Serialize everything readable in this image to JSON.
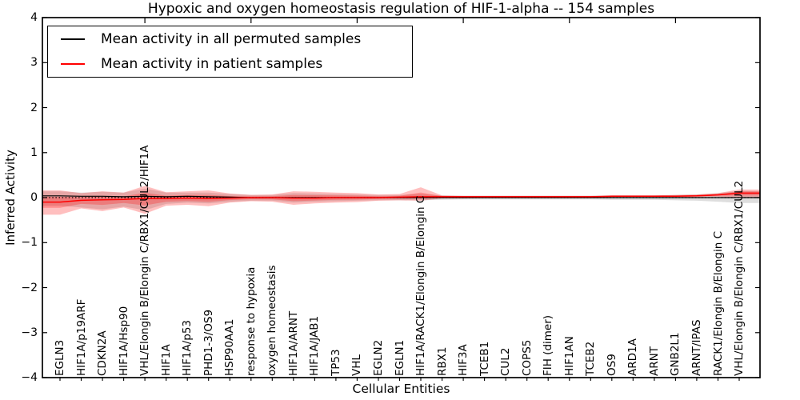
{
  "figure": {
    "title": "Hypoxic and oxygen homeostasis regulation of HIF-1-alpha -- 154 samples",
    "xlabel": "Cellular Entities",
    "ylabel": "Inferred Activity"
  },
  "legend": {
    "entries": [
      {
        "label": "Mean activity in all permuted samples",
        "color": "#000000"
      },
      {
        "label": "Mean activity in patient samples",
        "color": "#ff0000"
      }
    ]
  },
  "chart_data": {
    "type": "line",
    "title": "Hypoxic and oxygen homeostasis regulation of HIF-1-alpha -- 154 samples",
    "xlabel": "Cellular Entities",
    "ylabel": "Inferred Activity",
    "ylim": [
      -4,
      4
    ],
    "ytick_values": [
      -4,
      -3,
      -2,
      -1,
      0,
      1,
      2,
      3,
      4
    ],
    "ytick_labels": [
      "−4",
      "−3",
      "−2",
      "−1",
      "0",
      "1",
      "2",
      "3",
      "4"
    ],
    "grid": false,
    "zero_line_style": "dotted",
    "legend_position": "upper left",
    "top_tick_categories": [
      4,
      9,
      14,
      19,
      24,
      29
    ],
    "categories": [
      "EGLN3",
      "HIF1A/p19ARF",
      "CDKN2A",
      "HIF1A/Hsp90",
      "VHL/Elongin B/Elongin C/RBX1/CUL2/HIF1A",
      "HIF1A",
      "HIF1A/p53",
      "PHD1-3/OS9",
      "HSP90AA1",
      "response to hypoxia",
      "oxygen homeostasis",
      "HIF1A/ARNT",
      "HIF1A/JAB1",
      "TP53",
      "VHL",
      "EGLN2",
      "EGLN1",
      "HIF1A/RACK1/Elongin B/Elongin C",
      "RBX1",
      "HIF3A",
      "TCEB1",
      "CUL2",
      "COPS5",
      "FIH (dimer)",
      "HIF1AN",
      "TCEB2",
      "OS9",
      "ARD1A",
      "ARNT",
      "GNB2L1",
      "ARNT/IPAS",
      "RACK1/Elongin B/Elongin C",
      "VHL/Elongin B/Elongin C/RBX1/CUL2"
    ],
    "series": [
      {
        "name": "Mean activity in all permuted samples",
        "color": "#000000",
        "band_color": "rgba(0,0,0,0.13)",
        "values": [
          0.04,
          0.03,
          0.03,
          0.02,
          0.03,
          0.02,
          0.03,
          0.02,
          0.01,
          0,
          0,
          0,
          0,
          0,
          0,
          0,
          0,
          0,
          0,
          0,
          0,
          0,
          0,
          0,
          0,
          0,
          0,
          0,
          0,
          0,
          0,
          0,
          0
        ],
        "band_hi": [
          0.14,
          0.11,
          0.13,
          0.11,
          0.2,
          0.11,
          0.11,
          0.11,
          0.08,
          0.06,
          0.06,
          0.1,
          0.09,
          0.08,
          0.07,
          0.06,
          0.06,
          0.08,
          0.05,
          0.04,
          0.04,
          0.04,
          0.04,
          0.04,
          0.04,
          0.04,
          0.05,
          0.05,
          0.05,
          0.06,
          0.07,
          0.1,
          0.15
        ],
        "band_lo": [
          -0.18,
          -0.22,
          -0.26,
          -0.2,
          -0.28,
          -0.14,
          -0.11,
          -0.13,
          -0.09,
          -0.07,
          -0.07,
          -0.11,
          -0.09,
          -0.08,
          -0.07,
          -0.06,
          -0.06,
          -0.06,
          -0.05,
          -0.04,
          -0.04,
          -0.04,
          -0.04,
          -0.04,
          -0.04,
          -0.04,
          -0.05,
          -0.05,
          -0.05,
          -0.06,
          -0.07,
          -0.09,
          -0.12
        ]
      },
      {
        "name": "Mean activity in patient samples",
        "color": "#ff0000",
        "band_color": "rgba(255,0,0,0.25)",
        "values": [
          -0.1,
          -0.06,
          -0.05,
          -0.04,
          -0.02,
          -0.02,
          -0.01,
          -0.02,
          -0.01,
          0,
          0,
          -0.01,
          -0.01,
          0,
          0,
          0,
          0.01,
          0.02,
          0.02,
          0.02,
          0.02,
          0.02,
          0.02,
          0.02,
          0.02,
          0.02,
          0.03,
          0.03,
          0.03,
          0.03,
          0.04,
          0.06,
          0.1
        ],
        "band_hi": [
          0.16,
          0.1,
          0.14,
          0.11,
          0.26,
          0.12,
          0.14,
          0.16,
          0.09,
          0.06,
          0.07,
          0.14,
          0.13,
          0.11,
          0.1,
          0.07,
          0.08,
          0.23,
          0.05,
          0.04,
          0.04,
          0.04,
          0.04,
          0.04,
          0.04,
          0.04,
          0.05,
          0.05,
          0.05,
          0.06,
          0.07,
          0.1,
          0.18
        ],
        "band_lo": [
          -0.38,
          -0.24,
          -0.3,
          -0.22,
          -0.36,
          -0.18,
          -0.16,
          -0.19,
          -0.11,
          -0.08,
          -0.09,
          -0.16,
          -0.13,
          -0.11,
          -0.1,
          -0.07,
          -0.06,
          -0.07,
          -0.02,
          -0.02,
          -0.01,
          -0.01,
          -0.01,
          -0.01,
          -0.01,
          -0.01,
          -0.01,
          0,
          0,
          0,
          0.01,
          0.02,
          -0.01
        ]
      }
    ]
  }
}
